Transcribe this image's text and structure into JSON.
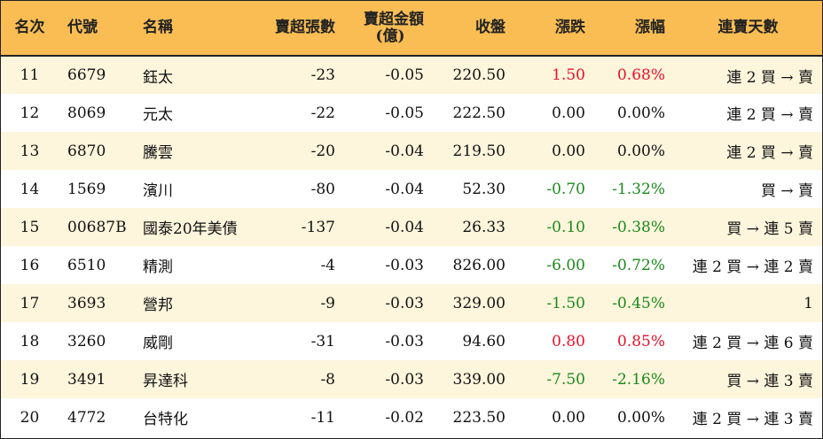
{
  "headers": {
    "rank": "名次",
    "code": "代號",
    "name": "名稱",
    "sell_lots": "賣超張數",
    "sell_amount_line1": "賣超金額",
    "sell_amount_line2": "(億)",
    "close": "收盤",
    "change": "漲跌",
    "pct": "漲幅",
    "streak": "連賣天數"
  },
  "colors": {
    "header_bg": "#f9bd53",
    "odd_row_bg": "#fdf5dc",
    "up": "#e8102a",
    "down": "#1a8a1a"
  },
  "rows": [
    {
      "rank": "11",
      "code": "6679",
      "name": "鈺太",
      "lots": "-23",
      "amount": "-0.05",
      "close": "220.50",
      "change": "1.50",
      "pct": "0.68%",
      "trend": "up",
      "streak": "連 2 買 → 賣"
    },
    {
      "rank": "12",
      "code": "8069",
      "name": "元太",
      "lots": "-22",
      "amount": "-0.05",
      "close": "222.50",
      "change": "0.00",
      "pct": "0.00%",
      "trend": "flat",
      "streak": "連 2 買 → 賣"
    },
    {
      "rank": "13",
      "code": "6870",
      "name": "騰雲",
      "lots": "-20",
      "amount": "-0.04",
      "close": "219.50",
      "change": "0.00",
      "pct": "0.00%",
      "trend": "flat",
      "streak": "連 2 買 → 賣"
    },
    {
      "rank": "14",
      "code": "1569",
      "name": "濱川",
      "lots": "-80",
      "amount": "-0.04",
      "close": "52.30",
      "change": "-0.70",
      "pct": "-1.32%",
      "trend": "down",
      "streak": "買 → 賣"
    },
    {
      "rank": "15",
      "code": "00687B",
      "name": "國泰20年美債",
      "lots": "-137",
      "amount": "-0.04",
      "close": "26.33",
      "change": "-0.10",
      "pct": "-0.38%",
      "trend": "down",
      "streak": "買 → 連 5 賣"
    },
    {
      "rank": "16",
      "code": "6510",
      "name": "精測",
      "lots": "-4",
      "amount": "-0.03",
      "close": "826.00",
      "change": "-6.00",
      "pct": "-0.72%",
      "trend": "down",
      "streak": "連 2 買 → 連 2 賣"
    },
    {
      "rank": "17",
      "code": "3693",
      "name": "營邦",
      "lots": "-9",
      "amount": "-0.03",
      "close": "329.00",
      "change": "-1.50",
      "pct": "-0.45%",
      "trend": "down",
      "streak": "1"
    },
    {
      "rank": "18",
      "code": "3260",
      "name": "威剛",
      "lots": "-31",
      "amount": "-0.03",
      "close": "94.60",
      "change": "0.80",
      "pct": "0.85%",
      "trend": "up",
      "streak": "連 2 買 → 連 6 賣"
    },
    {
      "rank": "19",
      "code": "3491",
      "name": "昇達科",
      "lots": "-8",
      "amount": "-0.03",
      "close": "339.00",
      "change": "-7.50",
      "pct": "-2.16%",
      "trend": "down",
      "streak": "買 → 連 3 賣"
    },
    {
      "rank": "20",
      "code": "4772",
      "name": "台特化",
      "lots": "-11",
      "amount": "-0.02",
      "close": "223.50",
      "change": "0.00",
      "pct": "0.00%",
      "trend": "flat",
      "streak": "連 2 買 → 連 3 賣"
    }
  ]
}
